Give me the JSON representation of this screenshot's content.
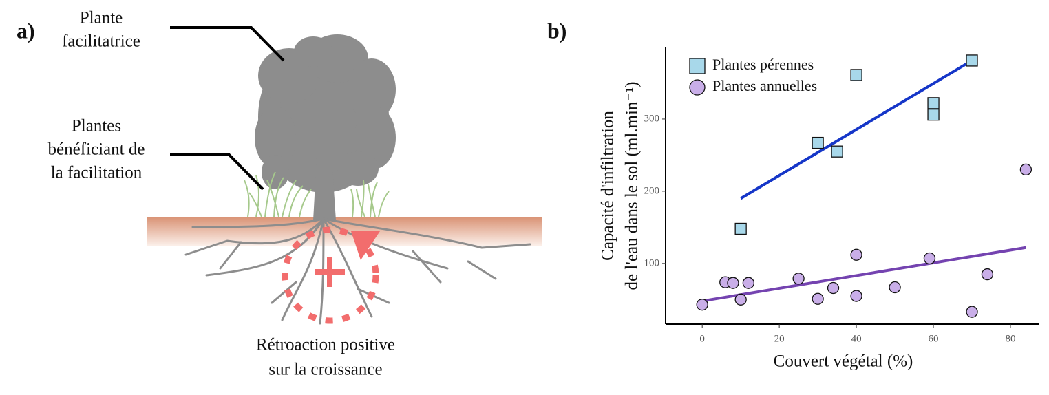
{
  "diagram": {
    "panel_label": "a)",
    "facilitator_label": [
      "Plante",
      "facilitatrice"
    ],
    "beneficiary_label": [
      "Plantes",
      "bénéficiant de",
      "la facilitation"
    ],
    "feedback_label": [
      "Rétroaction positive",
      "sur la croissance"
    ]
  },
  "chart_data": {
    "type": "scatter",
    "panel_label": "b)",
    "xlabel": "Couvert végétal (%)",
    "ylabel": [
      "Capacité d'infiltration",
      "de l'eau dans le sol (ml.min⁻¹)"
    ],
    "xlim": [
      -9.5,
      87.5
    ],
    "ylim": [
      16,
      400
    ],
    "xticks": [
      0,
      20,
      40,
      60,
      80
    ],
    "yticks": [
      100,
      200,
      300
    ],
    "grid": false,
    "legend": "top-left",
    "series": [
      {
        "name": "Plantes pérennes",
        "color": "#a8d8ea",
        "marker": "square",
        "x": [
          10,
          30,
          35,
          40,
          60,
          60,
          70
        ],
        "values": [
          148,
          267,
          255,
          361,
          322,
          306,
          381
        ]
      },
      {
        "name": "Plantes annuelles",
        "color": "#c9aee8",
        "marker": "circle",
        "x": [
          0,
          6,
          8,
          10,
          12,
          25,
          30,
          34,
          40,
          40,
          50,
          59,
          70,
          74,
          84
        ],
        "values": [
          43,
          74,
          73,
          50,
          73,
          79,
          51,
          66,
          112,
          55,
          67,
          107,
          33,
          85,
          230
        ]
      }
    ],
    "fits": [
      {
        "color": "#1536c8",
        "x": [
          10,
          70
        ],
        "values": [
          190,
          381
        ]
      },
      {
        "color": "#7443b0",
        "x": [
          0,
          84
        ],
        "values": [
          48,
          122
        ]
      }
    ]
  }
}
